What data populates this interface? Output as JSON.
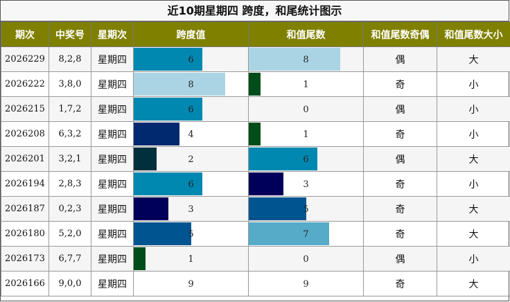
{
  "title": "近10期星期四 跨度，和尾统计图示",
  "headers": [
    "期次",
    "中奖号",
    "星期次",
    "跨度值",
    "和值尾数",
    "和值尾数奇偶",
    "和值尾数大小"
  ],
  "chart_data": {
    "type": "table",
    "bar_max": 10,
    "rows": [
      {
        "period": "2026229",
        "numbers": "8,2,8",
        "weekday": "星期四",
        "span": 6,
        "span_color": "#0088b0",
        "tail": 8,
        "tail_color": "#aad4e4",
        "parity": "偶",
        "size": "大"
      },
      {
        "period": "2026222",
        "numbers": "3,8,0",
        "weekday": "星期四",
        "span": 8,
        "span_color": "#aad4e4",
        "tail": 1,
        "tail_color": "#004d1a",
        "parity": "奇",
        "size": "小"
      },
      {
        "period": "2026215",
        "numbers": "1,7,2",
        "weekday": "星期四",
        "span": 6,
        "span_color": "#0088b0",
        "tail": 0,
        "tail_color": "#ffffff",
        "parity": "偶",
        "size": "小"
      },
      {
        "period": "2026208",
        "numbers": "6,3,2",
        "weekday": "星期四",
        "span": 4,
        "span_color": "#00296f",
        "tail": 1,
        "tail_color": "#004d1a",
        "parity": "奇",
        "size": "小"
      },
      {
        "period": "2026201",
        "numbers": "3,2,1",
        "weekday": "星期四",
        "span": 2,
        "span_color": "#00303c",
        "tail": 6,
        "tail_color": "#0088b0",
        "parity": "偶",
        "size": "大"
      },
      {
        "period": "2026194",
        "numbers": "2,8,3",
        "weekday": "星期四",
        "span": 6,
        "span_color": "#0088b0",
        "tail": 3,
        "tail_color": "#00005a",
        "parity": "奇",
        "size": "小"
      },
      {
        "period": "2026187",
        "numbers": "0,2,3",
        "weekday": "星期四",
        "span": 3,
        "span_color": "#00005a",
        "tail": 5,
        "tail_color": "#005590",
        "parity": "奇",
        "size": "大"
      },
      {
        "period": "2026180",
        "numbers": "5,2,0",
        "weekday": "星期四",
        "span": 5,
        "span_color": "#005590",
        "tail": 7,
        "tail_color": "#55abc8",
        "parity": "奇",
        "size": "大"
      },
      {
        "period": "2026173",
        "numbers": "6,7,7",
        "weekday": "星期四",
        "span": 1,
        "span_color": "#004d1a",
        "tail": 0,
        "tail_color": "#ffffff",
        "parity": "偶",
        "size": "小"
      },
      {
        "period": "2026166",
        "numbers": "9,0,0",
        "weekday": "星期四",
        "span": 9,
        "span_color": "#ffffff",
        "tail": 9,
        "tail_color": "#ffffff",
        "parity": "奇",
        "size": "大"
      }
    ]
  }
}
